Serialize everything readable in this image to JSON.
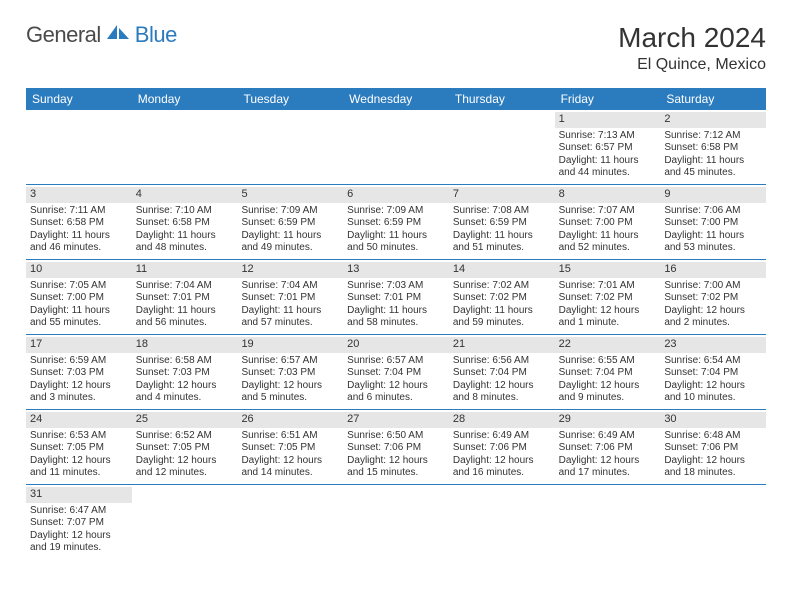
{
  "logo": {
    "text1": "General",
    "text2": "Blue"
  },
  "title": "March 2024",
  "location": "El Quince, Mexico",
  "colors": {
    "header_bg": "#2b7bbf",
    "header_text": "#ffffff",
    "daynum_bg": "#e6e6e6",
    "border": "#2b7bbf",
    "body_text": "#333333",
    "logo_gray": "#4a4a4a",
    "logo_blue": "#2b7bbf"
  },
  "weekdays": [
    "Sunday",
    "Monday",
    "Tuesday",
    "Wednesday",
    "Thursday",
    "Friday",
    "Saturday"
  ],
  "weeks": [
    [
      null,
      null,
      null,
      null,
      null,
      {
        "n": "1",
        "sunrise": "Sunrise: 7:13 AM",
        "sunset": "Sunset: 6:57 PM",
        "daylight": "Daylight: 11 hours and 44 minutes."
      },
      {
        "n": "2",
        "sunrise": "Sunrise: 7:12 AM",
        "sunset": "Sunset: 6:58 PM",
        "daylight": "Daylight: 11 hours and 45 minutes."
      }
    ],
    [
      {
        "n": "3",
        "sunrise": "Sunrise: 7:11 AM",
        "sunset": "Sunset: 6:58 PM",
        "daylight": "Daylight: 11 hours and 46 minutes."
      },
      {
        "n": "4",
        "sunrise": "Sunrise: 7:10 AM",
        "sunset": "Sunset: 6:58 PM",
        "daylight": "Daylight: 11 hours and 48 minutes."
      },
      {
        "n": "5",
        "sunrise": "Sunrise: 7:09 AM",
        "sunset": "Sunset: 6:59 PM",
        "daylight": "Daylight: 11 hours and 49 minutes."
      },
      {
        "n": "6",
        "sunrise": "Sunrise: 7:09 AM",
        "sunset": "Sunset: 6:59 PM",
        "daylight": "Daylight: 11 hours and 50 minutes."
      },
      {
        "n": "7",
        "sunrise": "Sunrise: 7:08 AM",
        "sunset": "Sunset: 6:59 PM",
        "daylight": "Daylight: 11 hours and 51 minutes."
      },
      {
        "n": "8",
        "sunrise": "Sunrise: 7:07 AM",
        "sunset": "Sunset: 7:00 PM",
        "daylight": "Daylight: 11 hours and 52 minutes."
      },
      {
        "n": "9",
        "sunrise": "Sunrise: 7:06 AM",
        "sunset": "Sunset: 7:00 PM",
        "daylight": "Daylight: 11 hours and 53 minutes."
      }
    ],
    [
      {
        "n": "10",
        "sunrise": "Sunrise: 7:05 AM",
        "sunset": "Sunset: 7:00 PM",
        "daylight": "Daylight: 11 hours and 55 minutes."
      },
      {
        "n": "11",
        "sunrise": "Sunrise: 7:04 AM",
        "sunset": "Sunset: 7:01 PM",
        "daylight": "Daylight: 11 hours and 56 minutes."
      },
      {
        "n": "12",
        "sunrise": "Sunrise: 7:04 AM",
        "sunset": "Sunset: 7:01 PM",
        "daylight": "Daylight: 11 hours and 57 minutes."
      },
      {
        "n": "13",
        "sunrise": "Sunrise: 7:03 AM",
        "sunset": "Sunset: 7:01 PM",
        "daylight": "Daylight: 11 hours and 58 minutes."
      },
      {
        "n": "14",
        "sunrise": "Sunrise: 7:02 AM",
        "sunset": "Sunset: 7:02 PM",
        "daylight": "Daylight: 11 hours and 59 minutes."
      },
      {
        "n": "15",
        "sunrise": "Sunrise: 7:01 AM",
        "sunset": "Sunset: 7:02 PM",
        "daylight": "Daylight: 12 hours and 1 minute."
      },
      {
        "n": "16",
        "sunrise": "Sunrise: 7:00 AM",
        "sunset": "Sunset: 7:02 PM",
        "daylight": "Daylight: 12 hours and 2 minutes."
      }
    ],
    [
      {
        "n": "17",
        "sunrise": "Sunrise: 6:59 AM",
        "sunset": "Sunset: 7:03 PM",
        "daylight": "Daylight: 12 hours and 3 minutes."
      },
      {
        "n": "18",
        "sunrise": "Sunrise: 6:58 AM",
        "sunset": "Sunset: 7:03 PM",
        "daylight": "Daylight: 12 hours and 4 minutes."
      },
      {
        "n": "19",
        "sunrise": "Sunrise: 6:57 AM",
        "sunset": "Sunset: 7:03 PM",
        "daylight": "Daylight: 12 hours and 5 minutes."
      },
      {
        "n": "20",
        "sunrise": "Sunrise: 6:57 AM",
        "sunset": "Sunset: 7:04 PM",
        "daylight": "Daylight: 12 hours and 6 minutes."
      },
      {
        "n": "21",
        "sunrise": "Sunrise: 6:56 AM",
        "sunset": "Sunset: 7:04 PM",
        "daylight": "Daylight: 12 hours and 8 minutes."
      },
      {
        "n": "22",
        "sunrise": "Sunrise: 6:55 AM",
        "sunset": "Sunset: 7:04 PM",
        "daylight": "Daylight: 12 hours and 9 minutes."
      },
      {
        "n": "23",
        "sunrise": "Sunrise: 6:54 AM",
        "sunset": "Sunset: 7:04 PM",
        "daylight": "Daylight: 12 hours and 10 minutes."
      }
    ],
    [
      {
        "n": "24",
        "sunrise": "Sunrise: 6:53 AM",
        "sunset": "Sunset: 7:05 PM",
        "daylight": "Daylight: 12 hours and 11 minutes."
      },
      {
        "n": "25",
        "sunrise": "Sunrise: 6:52 AM",
        "sunset": "Sunset: 7:05 PM",
        "daylight": "Daylight: 12 hours and 12 minutes."
      },
      {
        "n": "26",
        "sunrise": "Sunrise: 6:51 AM",
        "sunset": "Sunset: 7:05 PM",
        "daylight": "Daylight: 12 hours and 14 minutes."
      },
      {
        "n": "27",
        "sunrise": "Sunrise: 6:50 AM",
        "sunset": "Sunset: 7:06 PM",
        "daylight": "Daylight: 12 hours and 15 minutes."
      },
      {
        "n": "28",
        "sunrise": "Sunrise: 6:49 AM",
        "sunset": "Sunset: 7:06 PM",
        "daylight": "Daylight: 12 hours and 16 minutes."
      },
      {
        "n": "29",
        "sunrise": "Sunrise: 6:49 AM",
        "sunset": "Sunset: 7:06 PM",
        "daylight": "Daylight: 12 hours and 17 minutes."
      },
      {
        "n": "30",
        "sunrise": "Sunrise: 6:48 AM",
        "sunset": "Sunset: 7:06 PM",
        "daylight": "Daylight: 12 hours and 18 minutes."
      }
    ],
    [
      {
        "n": "31",
        "sunrise": "Sunrise: 6:47 AM",
        "sunset": "Sunset: 7:07 PM",
        "daylight": "Daylight: 12 hours and 19 minutes."
      },
      null,
      null,
      null,
      null,
      null,
      null
    ]
  ]
}
